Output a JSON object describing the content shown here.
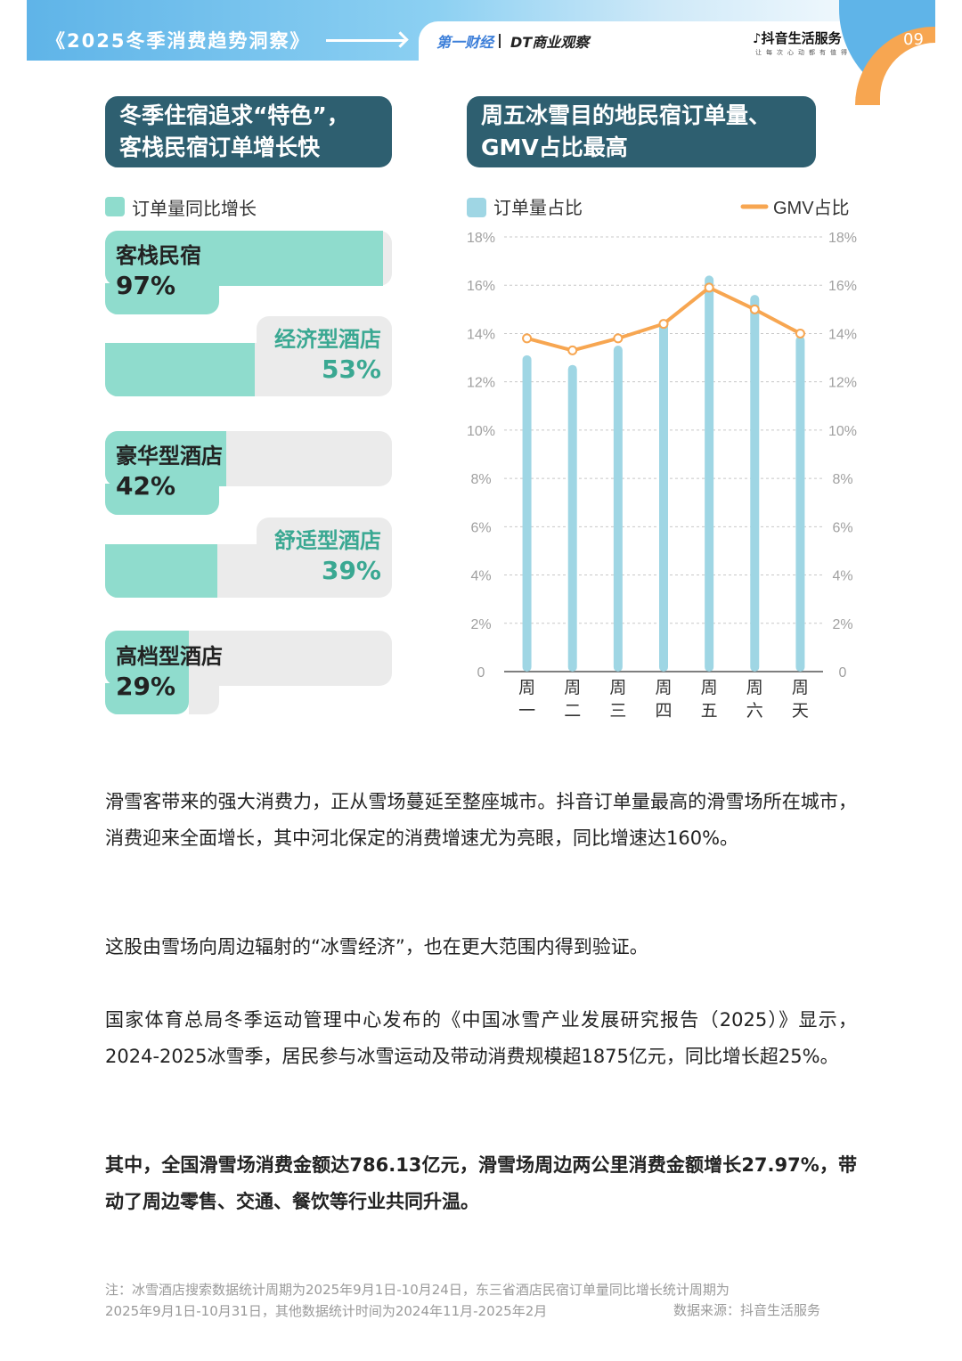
{
  "header": {
    "title": "《2025冬季消费趋势洞察》",
    "logo_yicai": "第一财经",
    "logo_dt": "DT商业观察",
    "logo_douyin": "抖音生活服务",
    "logo_douyin_sub": "让每次心动都有值得",
    "page_number": "09"
  },
  "left_section": {
    "title_line1": "冬季住宿追求“特色”，",
    "title_line2": "客栈民宿订单增长快",
    "legend": "订单量同比增长",
    "legend_color": "#8fdccd",
    "items": [
      {
        "name": "客栈民宿",
        "percent": "97%",
        "value": 0.97
      },
      {
        "name": "经济型酒店",
        "percent": "53%",
        "value": 0.53
      },
      {
        "name": "豪华型酒店",
        "percent": "42%",
        "value": 0.42
      },
      {
        "name": "舒适型酒店",
        "percent": "39%",
        "value": 0.39
      },
      {
        "name": "高档型酒店",
        "percent": "29%",
        "value": 0.29
      }
    ]
  },
  "right_section": {
    "title_line1": "周五冰雪目的地民宿订单量、",
    "title_line2": "GMV占比最高"
  },
  "chart_data": {
    "type": "bar",
    "categories": [
      "周一",
      "周二",
      "周三",
      "周四",
      "周五",
      "周六",
      "周天"
    ],
    "series": [
      {
        "name": "订单量占比",
        "type": "bar",
        "color": "#9fd6e4",
        "values": [
          13.1,
          12.7,
          13.5,
          14.5,
          16.4,
          15.6,
          13.9
        ]
      },
      {
        "name": "GMV占比",
        "type": "line",
        "color": "#f7a651",
        "values": [
          13.8,
          13.3,
          13.8,
          14.4,
          15.9,
          15.0,
          14.0
        ]
      }
    ],
    "ylim": [
      0,
      18
    ],
    "yticks": [
      "0",
      "2%",
      "4%",
      "6%",
      "8%",
      "10%",
      "12%",
      "14%",
      "16%",
      "18%"
    ],
    "grid": true,
    "legend_position": "top"
  },
  "body": {
    "p1": "滑雪客带来的强大消费力，正从雪场蔓延至整座城市。抖音订单量最高的滑雪场所在城市，消费迎来全面增长，其中河北保定的消费增速尤为亮眼，同比增速达160%。",
    "p2": "这股由雪场向周边辐射的“冰雪经济”，也在更大范围内得到验证。",
    "p3": "国家体育总局冬季运动管理中心发布的《中国冰雪产业发展研究报告（2025）》显示，2024-2025冰雪季，居民参与冰雪运动及带动消费规模超1875亿元，同比增长超25%。",
    "p4": "其中，全国滑雪场消费金额达786.13亿元，滑雪场周边两公里消费金额增长27.97%，带动了周边零售、交通、餐饮等行业共同升温。"
  },
  "footer": {
    "note_line1": "注：冰雪酒店搜索数据统计周期为2025年9月1日-10月24日，东三省酒店民宿订单量同比增长统计周期为",
    "note_line2": "2025年9月1日-10月31日，其他数据统计时间为2024年11月-2025年2月",
    "source": "数据来源：抖音生活服务"
  }
}
